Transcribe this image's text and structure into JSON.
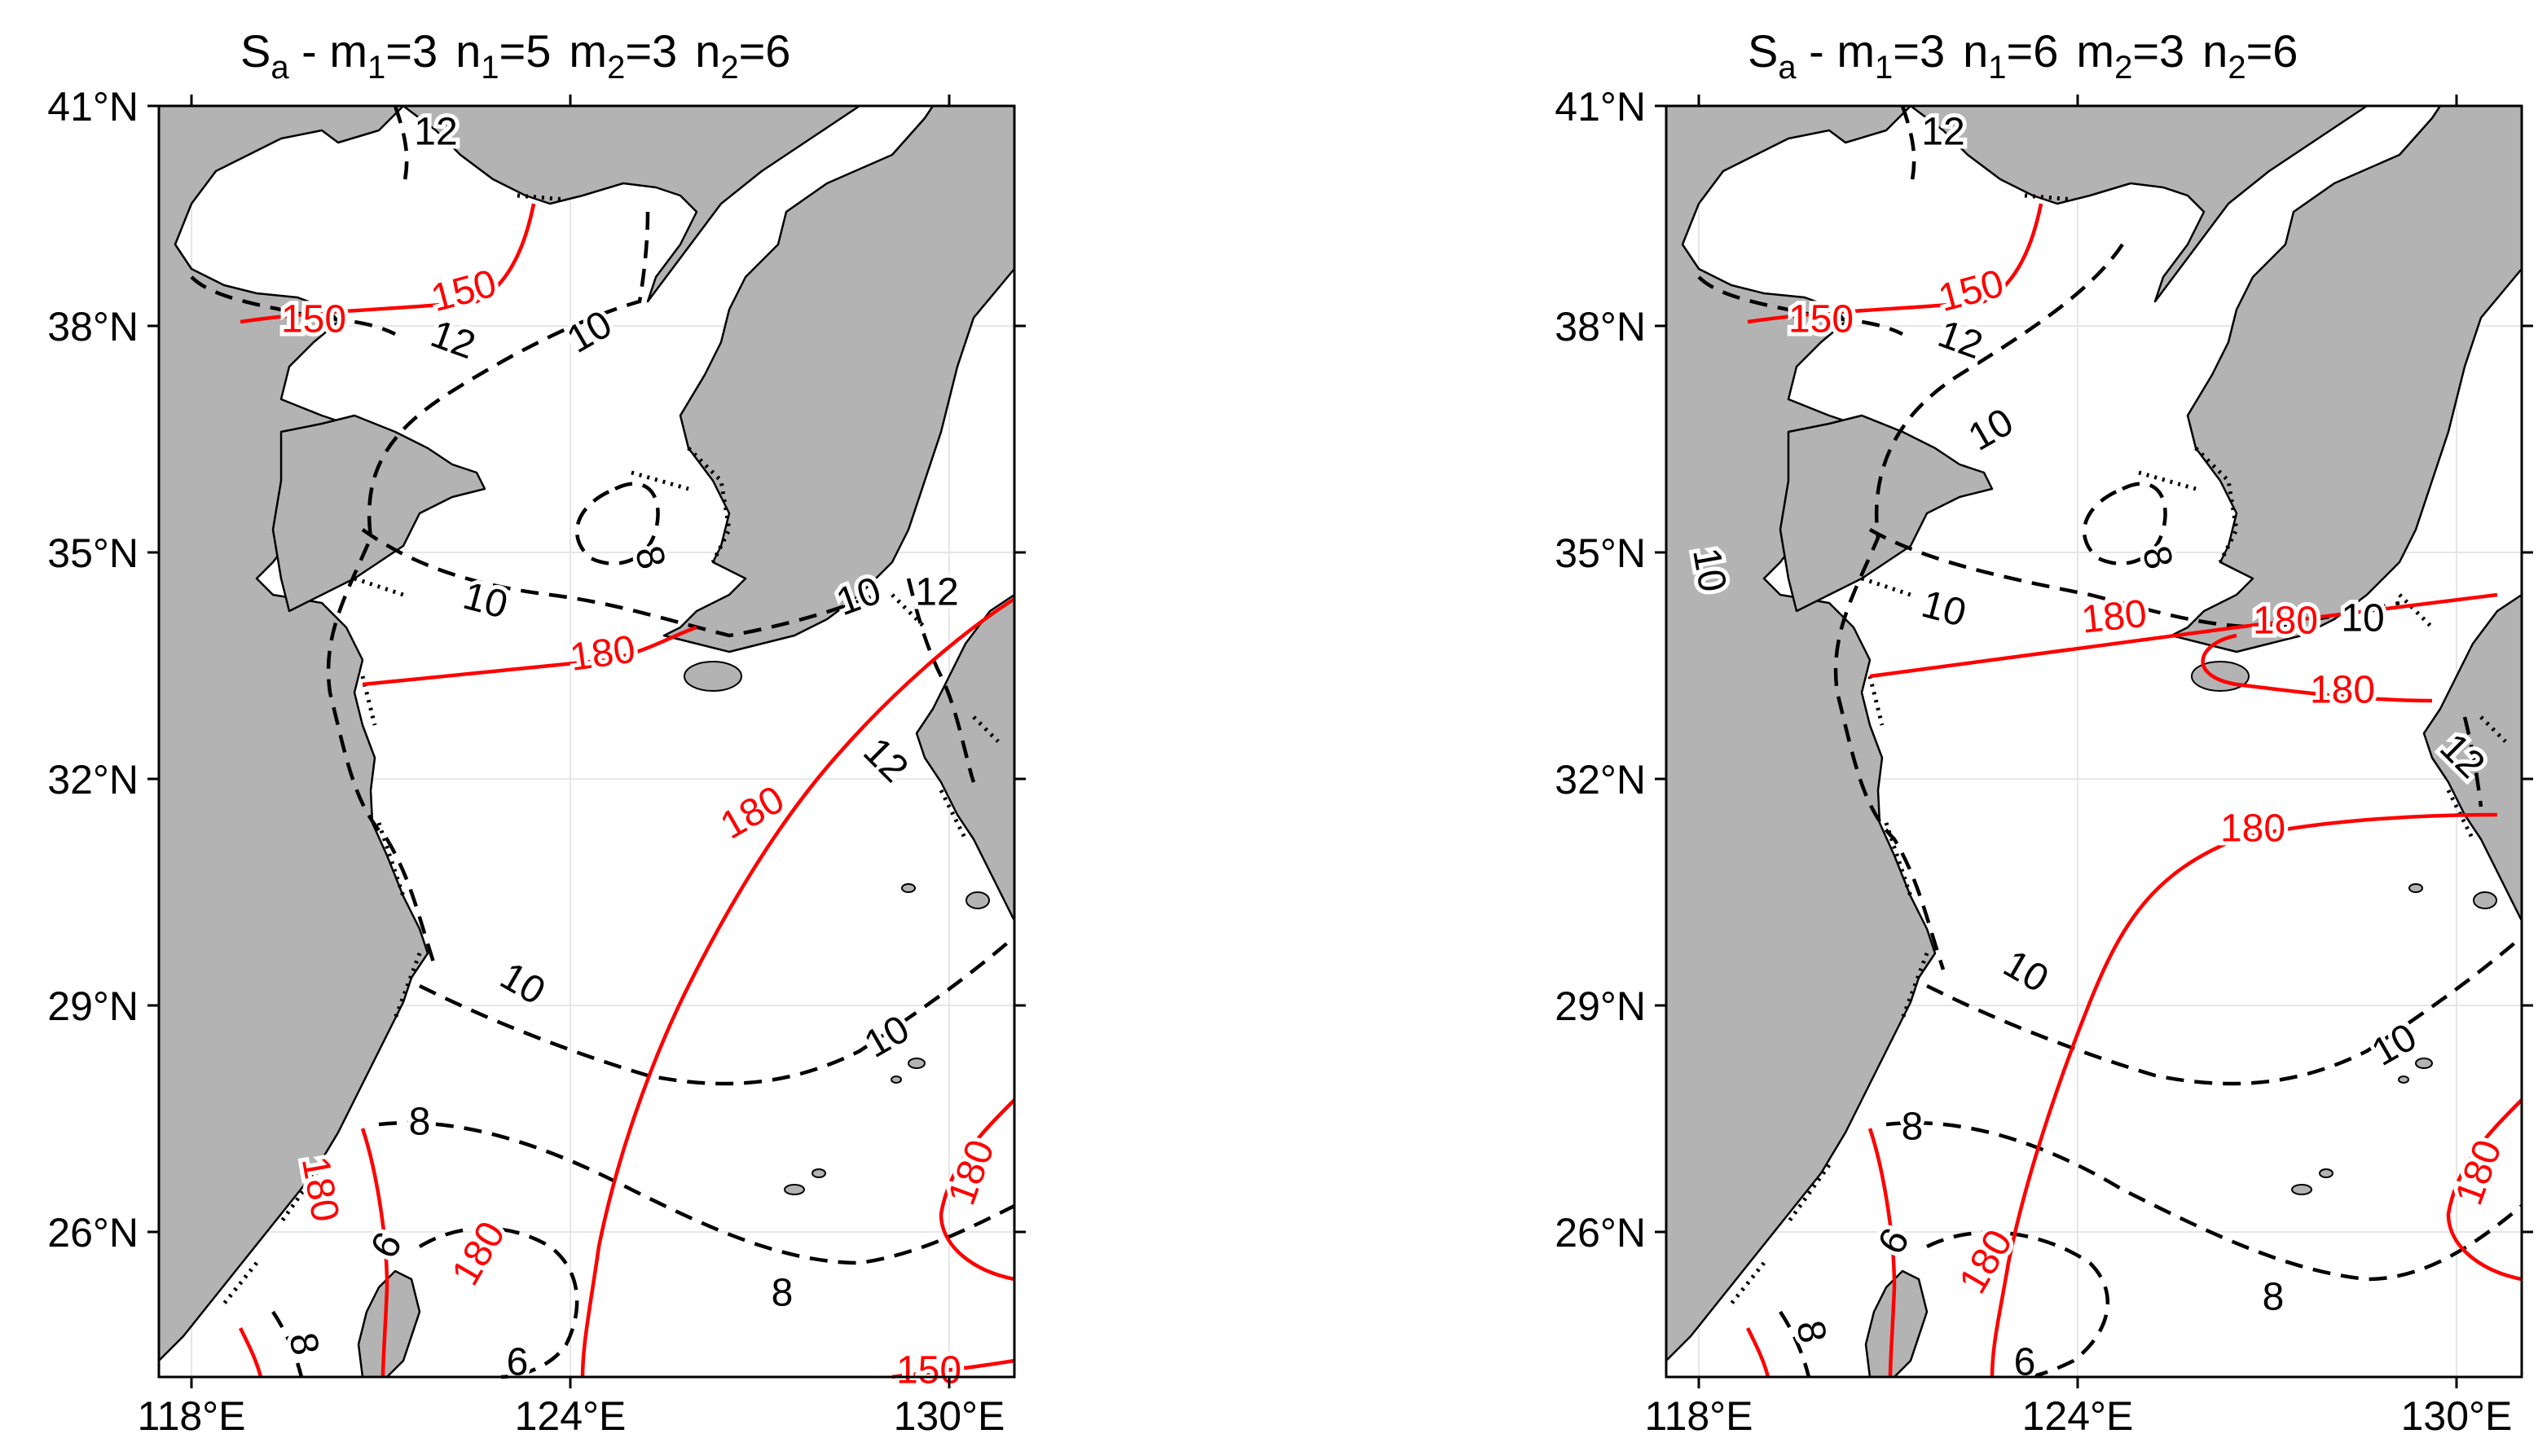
{
  "axes": {
    "lat_ticks": [
      "41°N",
      "38°N",
      "35°N",
      "32°N",
      "29°N",
      "26°N"
    ],
    "lon_ticks": [
      "118°E",
      "124°E",
      "130°E"
    ]
  },
  "colors": {
    "land": "#b3b3b3",
    "sea": "#ffffff",
    "phase_contour": "#ff0000",
    "amplitude_contour": "#000000",
    "grid": "#e6e6e6"
  },
  "panels": [
    {
      "title_parts": {
        "S": "S",
        "a": "a",
        "m1": " - m",
        "m1_sub": "1",
        "m1_val": "=3",
        "n1": "n",
        "n1_sub": "1",
        "n1_val": "=5",
        "m2": "m",
        "m2_sub": "2",
        "m2_val": "=3",
        "n2": "n",
        "n2_sub": "2",
        "n2_val": "=6"
      },
      "phase_labels": [
        "150",
        "150",
        "180",
        "180",
        "180",
        "180",
        "180",
        "150"
      ],
      "amplitude_labels": [
        "12",
        "12",
        "10",
        "10",
        "8",
        "10",
        "12",
        "12",
        "10",
        "10",
        "8",
        "6",
        "8",
        "8",
        "6"
      ]
    },
    {
      "title_parts": {
        "S": "S",
        "a": "a",
        "m1": " - m",
        "m1_sub": "1",
        "m1_val": "=3",
        "n1": "n",
        "n1_sub": "1",
        "n1_val": "=6",
        "m2": "m",
        "m2_sub": "2",
        "m2_val": "=3",
        "n2": "n",
        "n2_sub": "2",
        "n2_val": "=6"
      },
      "phase_labels": [
        "150",
        "150",
        "180",
        "180",
        "180",
        "180",
        "180",
        "180"
      ],
      "amplitude_labels": [
        "12",
        "12",
        "10",
        "10",
        "8",
        "10",
        "10",
        "12",
        "10",
        "10",
        "8",
        "6",
        "8",
        "8",
        "6"
      ]
    }
  ]
}
